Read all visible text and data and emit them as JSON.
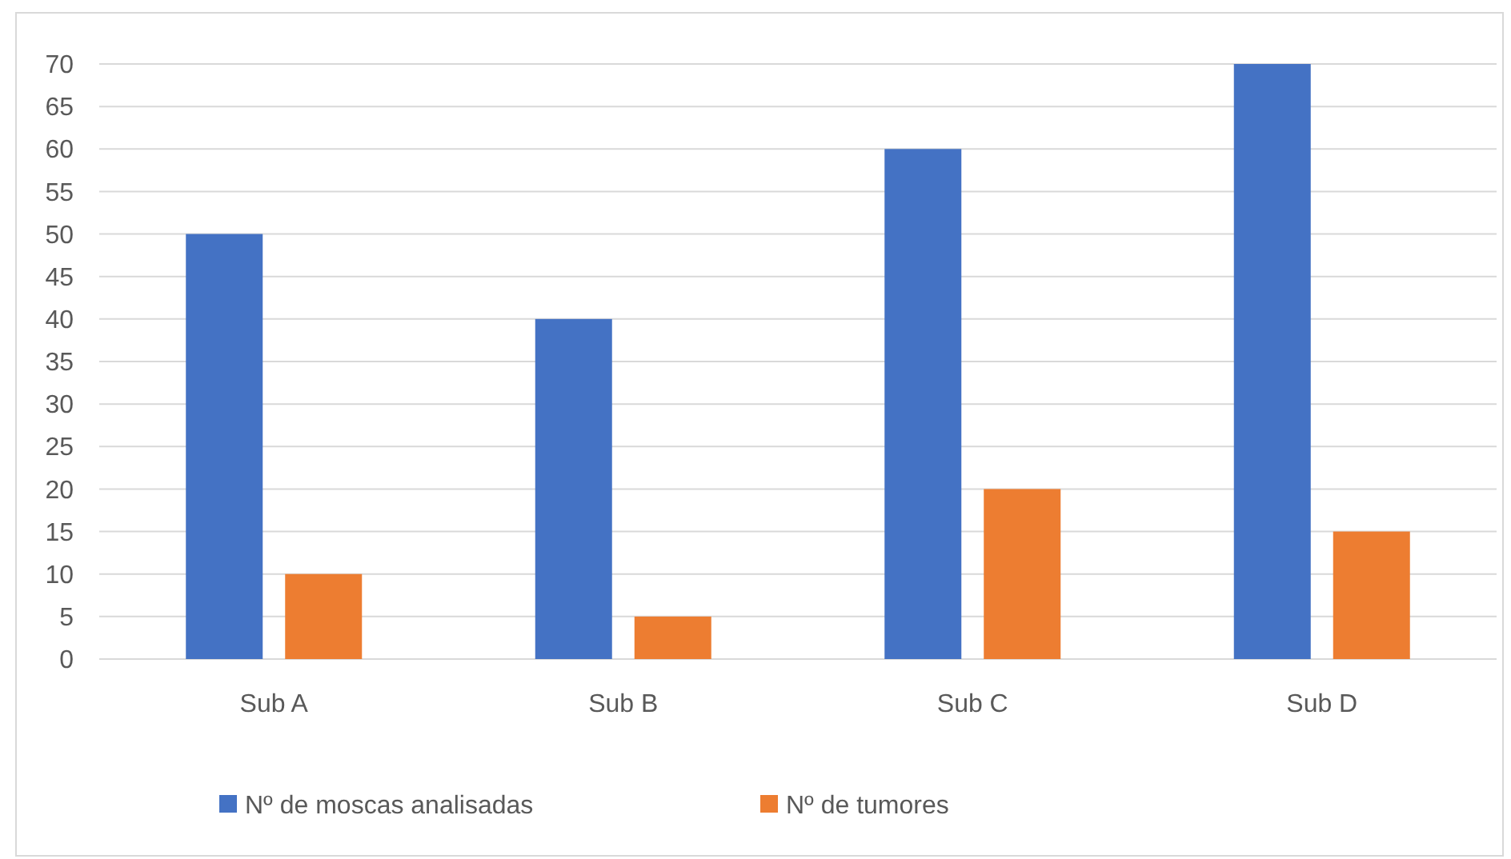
{
  "chart_data": {
    "type": "bar",
    "categories": [
      "Sub A",
      "Sub B",
      "Sub C",
      "Sub D"
    ],
    "series": [
      {
        "name": "Nº de moscas analisadas",
        "color": "#4472c4",
        "values": [
          50,
          40,
          60,
          70
        ]
      },
      {
        "name": "Nº de tumores",
        "color": "#ed7d31",
        "values": [
          10,
          5,
          20,
          15
        ]
      }
    ],
    "ylim": [
      0,
      70
    ],
    "yticks": [
      0,
      5,
      10,
      15,
      20,
      25,
      30,
      35,
      40,
      45,
      50,
      55,
      60,
      65,
      70
    ],
    "grid": "y",
    "legend": "bottom"
  }
}
